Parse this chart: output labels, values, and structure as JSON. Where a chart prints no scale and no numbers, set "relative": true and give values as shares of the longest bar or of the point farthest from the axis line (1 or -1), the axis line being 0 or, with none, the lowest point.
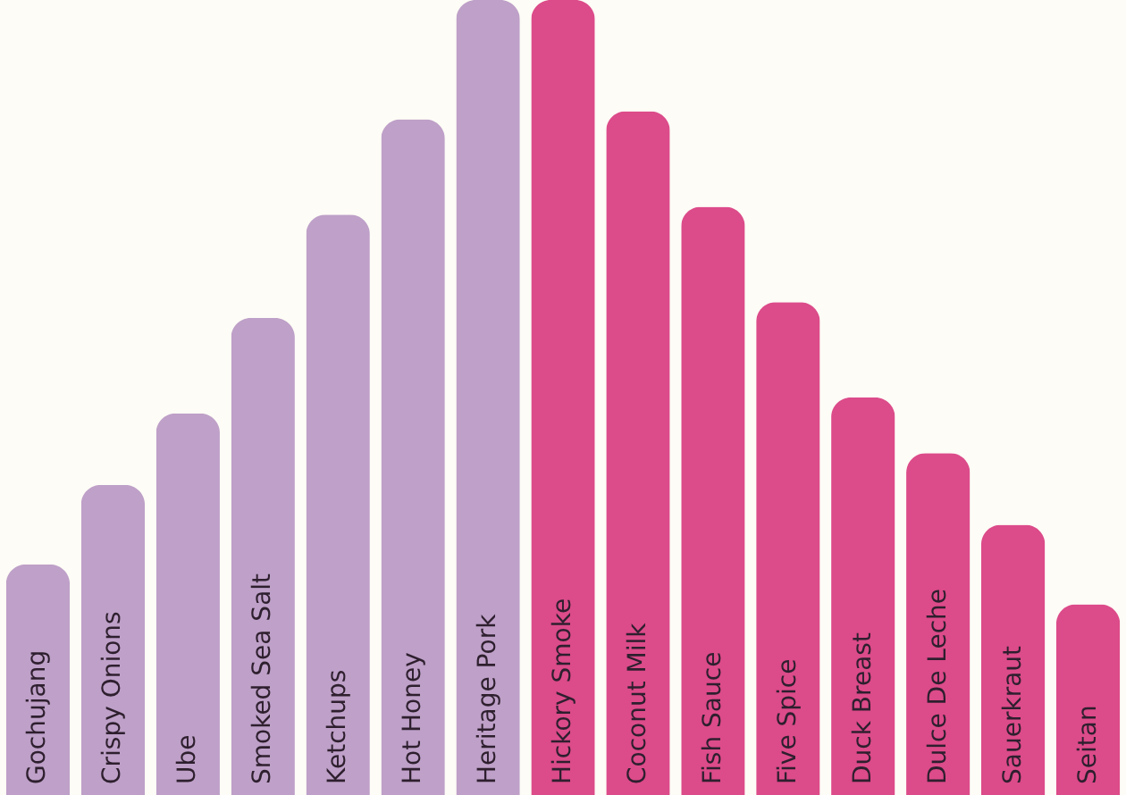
{
  "chart_data": {
    "type": "bar",
    "relative": true,
    "data_labels": false,
    "categories": [
      "Gochujang",
      "Crispy Onions",
      "Ube",
      "Smoked Sea Salt",
      "Ketchups",
      "Hot Honey",
      "Heritage Pork",
      "Hickory Smoke",
      "Coconut Milk",
      "Fish Sauce",
      "Five Spice",
      "Duck Breast",
      "Dulce De Leche",
      "Sauerkraut",
      "Seitan"
    ],
    "values": [
      0.29,
      0.39,
      0.48,
      0.6,
      0.73,
      0.85,
      1,
      1,
      0.86,
      0.74,
      0.62,
      0.5,
      0.43,
      0.34,
      0.24
    ],
    "colors": [
      "#bea0c8",
      "#bea0c8",
      "#bea0c8",
      "#bea0c8",
      "#bea0c8",
      "#bea0c8",
      "#bea0c8",
      "#dc4b8a",
      "#dc4b8a",
      "#dc4b8a",
      "#dc4b8a",
      "#dc4b8a",
      "#dc4b8a",
      "#dc4b8a",
      "#dc4b8a"
    ]
  }
}
